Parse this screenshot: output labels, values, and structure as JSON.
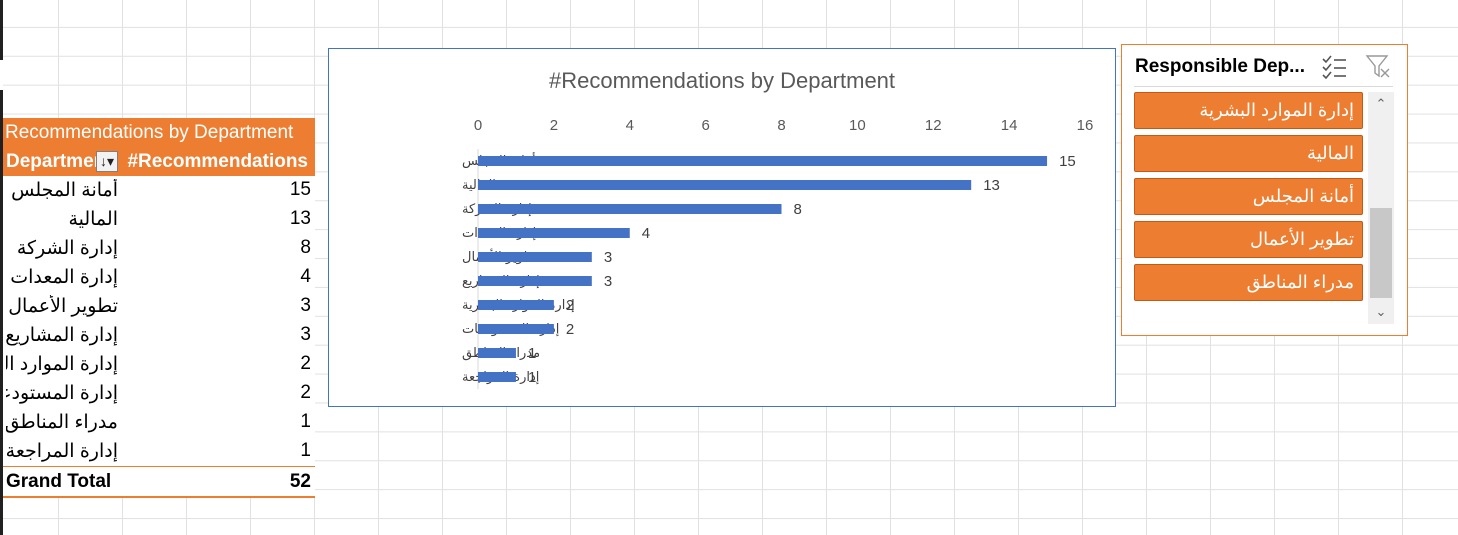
{
  "pivot": {
    "title": "Recommendations by Department",
    "header_dept": "Department",
    "header_count": "#Recommendations",
    "rows": [
      {
        "dept": "أمانة المجلس",
        "count": "15"
      },
      {
        "dept": "المالية",
        "count": "13"
      },
      {
        "dept": "إدارة الشركة",
        "count": "8"
      },
      {
        "dept": "إدارة المعدات",
        "count": "4"
      },
      {
        "dept": "تطوير الأعمال",
        "count": "3"
      },
      {
        "dept": "إدارة المشاريع",
        "count": "3"
      },
      {
        "dept": "إدارة الموارد البشرية",
        "count": "2"
      },
      {
        "dept": "إدارة المستودعات",
        "count": "2"
      },
      {
        "dept": "مدراء المناطق",
        "count": "1"
      },
      {
        "dept": "إدارة المراجعة",
        "count": "1"
      }
    ],
    "total_label": "Grand Total",
    "total_value": "52"
  },
  "chart_data": {
    "type": "bar",
    "orientation": "horizontal",
    "title": "#Recommendations by Department",
    "categories": [
      "أمانة المجلس",
      "المالية",
      "إدارة الشركة",
      "إدارة المعدات",
      "تطوير الأعمال",
      "إدارة المشاريع",
      "إدارة الموارد البشرية",
      "إدارة المستودعات",
      "مدراء المناطق",
      "إدارة المراجعة"
    ],
    "values": [
      15,
      13,
      8,
      4,
      3,
      3,
      2,
      2,
      1,
      1
    ],
    "xlim": [
      0,
      16
    ],
    "xticks": [
      0,
      2,
      4,
      6,
      8,
      10,
      12,
      14,
      16
    ],
    "axis_position": "top",
    "grid": false,
    "data_labels": true,
    "bar_color": "#4472c4"
  },
  "slicer": {
    "title": "Responsible Dep...",
    "items": [
      "إدارة الموارد البشرية",
      "المالية",
      "أمانة المجلس",
      "تطوير الأعمال",
      "مدراء المناطق"
    ],
    "item_color": "#ed7d31"
  },
  "icons": {
    "sort": "sort-dropdown-icon",
    "multiselect": "multiselect-icon",
    "clear_filter": "clear-filter-icon",
    "scroll_up": "scroll-up-icon",
    "scroll_down": "scroll-down-icon"
  }
}
